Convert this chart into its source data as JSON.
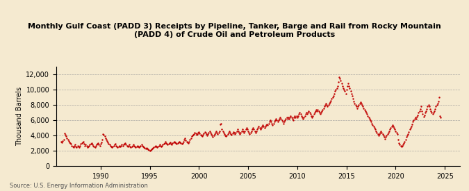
{
  "title": "Monthly Gulf Coast (PADD 3) Receipts by Pipeline, Tanker, Barge and Rail from Rocky Mountain\n(PADD 4) of Crude Oil and Petroleum Products",
  "ylabel": "Thousand Barrels",
  "source": "Source: U.S. Energy Information Administration",
  "bg_color": "#f5ead0",
  "plot_bg_color": "#f5ead0",
  "dot_color": "#c00000",
  "xlim": [
    1985.5,
    2026.5
  ],
  "ylim": [
    0,
    13000
  ],
  "yticks": [
    0,
    2000,
    4000,
    6000,
    8000,
    10000,
    12000
  ],
  "ytick_labels": [
    "0",
    "2,000",
    "4,000",
    "6,000",
    "8,000",
    "10,000",
    "12,000"
  ],
  "xticks": [
    1990,
    1995,
    2000,
    2005,
    2010,
    2015,
    2020,
    2025
  ],
  "data": [
    [
      1986.0,
      3200
    ],
    [
      1986.08,
      3100
    ],
    [
      1986.17,
      3300
    ],
    [
      1986.25,
      3500
    ],
    [
      1986.33,
      4300
    ],
    [
      1986.42,
      4100
    ],
    [
      1986.5,
      3900
    ],
    [
      1986.58,
      3700
    ],
    [
      1986.67,
      3500
    ],
    [
      1986.75,
      3300
    ],
    [
      1986.83,
      3100
    ],
    [
      1986.92,
      3000
    ],
    [
      1987.0,
      2900
    ],
    [
      1987.08,
      2700
    ],
    [
      1987.17,
      2600
    ],
    [
      1987.25,
      2500
    ],
    [
      1987.33,
      2700
    ],
    [
      1987.42,
      2800
    ],
    [
      1987.5,
      2600
    ],
    [
      1987.58,
      2500
    ],
    [
      1987.67,
      2700
    ],
    [
      1987.75,
      2600
    ],
    [
      1987.83,
      2500
    ],
    [
      1987.92,
      2700
    ],
    [
      1988.0,
      2900
    ],
    [
      1988.08,
      3000
    ],
    [
      1988.17,
      3100
    ],
    [
      1988.25,
      3200
    ],
    [
      1988.33,
      2900
    ],
    [
      1988.42,
      2700
    ],
    [
      1988.5,
      2800
    ],
    [
      1988.58,
      2700
    ],
    [
      1988.67,
      2500
    ],
    [
      1988.75,
      2600
    ],
    [
      1988.83,
      2700
    ],
    [
      1988.92,
      2800
    ],
    [
      1989.0,
      2900
    ],
    [
      1989.08,
      3000
    ],
    [
      1989.17,
      2800
    ],
    [
      1989.25,
      2700
    ],
    [
      1989.33,
      2600
    ],
    [
      1989.42,
      2500
    ],
    [
      1989.5,
      2700
    ],
    [
      1989.58,
      2800
    ],
    [
      1989.67,
      2900
    ],
    [
      1989.75,
      3000
    ],
    [
      1989.83,
      2800
    ],
    [
      1989.92,
      2700
    ],
    [
      1990.0,
      2900
    ],
    [
      1990.08,
      3100
    ],
    [
      1990.17,
      3500
    ],
    [
      1990.25,
      4200
    ],
    [
      1990.33,
      4100
    ],
    [
      1990.42,
      3900
    ],
    [
      1990.5,
      3700
    ],
    [
      1990.58,
      3500
    ],
    [
      1990.67,
      3300
    ],
    [
      1990.75,
      3100
    ],
    [
      1990.83,
      2900
    ],
    [
      1990.92,
      2800
    ],
    [
      1991.0,
      2700
    ],
    [
      1991.08,
      2600
    ],
    [
      1991.17,
      2500
    ],
    [
      1991.25,
      2600
    ],
    [
      1991.33,
      2700
    ],
    [
      1991.42,
      2800
    ],
    [
      1991.5,
      2900
    ],
    [
      1991.58,
      2700
    ],
    [
      1991.67,
      2600
    ],
    [
      1991.75,
      2500
    ],
    [
      1991.83,
      2600
    ],
    [
      1991.92,
      2700
    ],
    [
      1992.0,
      2600
    ],
    [
      1992.08,
      2700
    ],
    [
      1992.17,
      2800
    ],
    [
      1992.25,
      2700
    ],
    [
      1992.33,
      2800
    ],
    [
      1992.42,
      2900
    ],
    [
      1992.5,
      3000
    ],
    [
      1992.58,
      2800
    ],
    [
      1992.67,
      2700
    ],
    [
      1992.75,
      2600
    ],
    [
      1992.83,
      2700
    ],
    [
      1992.92,
      2800
    ],
    [
      1993.0,
      2600
    ],
    [
      1993.08,
      2500
    ],
    [
      1993.17,
      2600
    ],
    [
      1993.25,
      2700
    ],
    [
      1993.33,
      2800
    ],
    [
      1993.42,
      2700
    ],
    [
      1993.5,
      2600
    ],
    [
      1993.58,
      2500
    ],
    [
      1993.67,
      2600
    ],
    [
      1993.75,
      2700
    ],
    [
      1993.83,
      2600
    ],
    [
      1993.92,
      2500
    ],
    [
      1994.0,
      2600
    ],
    [
      1994.08,
      2700
    ],
    [
      1994.17,
      2800
    ],
    [
      1994.25,
      2700
    ],
    [
      1994.33,
      2600
    ],
    [
      1994.42,
      2500
    ],
    [
      1994.5,
      2400
    ],
    [
      1994.58,
      2300
    ],
    [
      1994.67,
      2400
    ],
    [
      1994.75,
      2300
    ],
    [
      1994.83,
      2200
    ],
    [
      1994.92,
      2100
    ],
    [
      1995.0,
      2000
    ],
    [
      1995.08,
      2100
    ],
    [
      1995.17,
      2200
    ],
    [
      1995.25,
      2300
    ],
    [
      1995.33,
      2400
    ],
    [
      1995.42,
      2500
    ],
    [
      1995.5,
      2600
    ],
    [
      1995.58,
      2700
    ],
    [
      1995.67,
      2600
    ],
    [
      1995.75,
      2500
    ],
    [
      1995.83,
      2600
    ],
    [
      1995.92,
      2700
    ],
    [
      1996.0,
      2800
    ],
    [
      1996.08,
      2700
    ],
    [
      1996.17,
      2600
    ],
    [
      1996.25,
      2700
    ],
    [
      1996.33,
      2800
    ],
    [
      1996.42,
      2900
    ],
    [
      1996.5,
      3000
    ],
    [
      1996.58,
      3200
    ],
    [
      1996.67,
      3000
    ],
    [
      1996.75,
      2900
    ],
    [
      1996.83,
      2800
    ],
    [
      1996.92,
      2900
    ],
    [
      1997.0,
      3000
    ],
    [
      1997.08,
      3100
    ],
    [
      1997.17,
      2900
    ],
    [
      1997.25,
      2800
    ],
    [
      1997.33,
      3000
    ],
    [
      1997.42,
      3100
    ],
    [
      1997.5,
      3200
    ],
    [
      1997.58,
      3100
    ],
    [
      1997.67,
      3000
    ],
    [
      1997.75,
      2900
    ],
    [
      1997.83,
      3000
    ],
    [
      1997.92,
      3100
    ],
    [
      1998.0,
      3200
    ],
    [
      1998.08,
      3100
    ],
    [
      1998.17,
      3000
    ],
    [
      1998.25,
      2900
    ],
    [
      1998.33,
      3000
    ],
    [
      1998.42,
      3200
    ],
    [
      1998.5,
      3500
    ],
    [
      1998.58,
      3700
    ],
    [
      1998.67,
      3400
    ],
    [
      1998.75,
      3200
    ],
    [
      1998.83,
      3100
    ],
    [
      1998.92,
      3000
    ],
    [
      1999.0,
      3200
    ],
    [
      1999.08,
      3500
    ],
    [
      1999.17,
      3700
    ],
    [
      1999.25,
      3900
    ],
    [
      1999.33,
      4000
    ],
    [
      1999.42,
      4100
    ],
    [
      1999.5,
      4200
    ],
    [
      1999.58,
      4400
    ],
    [
      1999.67,
      4300
    ],
    [
      1999.75,
      4100
    ],
    [
      1999.83,
      4200
    ],
    [
      1999.92,
      4400
    ],
    [
      2000.0,
      4500
    ],
    [
      2000.08,
      4300
    ],
    [
      2000.17,
      4100
    ],
    [
      2000.25,
      4000
    ],
    [
      2000.33,
      3900
    ],
    [
      2000.42,
      4100
    ],
    [
      2000.5,
      4300
    ],
    [
      2000.58,
      4500
    ],
    [
      2000.67,
      4400
    ],
    [
      2000.75,
      4200
    ],
    [
      2000.83,
      4000
    ],
    [
      2000.92,
      4200
    ],
    [
      2001.0,
      4400
    ],
    [
      2001.08,
      4600
    ],
    [
      2001.17,
      4400
    ],
    [
      2001.25,
      4200
    ],
    [
      2001.33,
      4000
    ],
    [
      2001.42,
      3800
    ],
    [
      2001.5,
      4000
    ],
    [
      2001.58,
      4200
    ],
    [
      2001.67,
      4400
    ],
    [
      2001.75,
      4600
    ],
    [
      2001.83,
      4400
    ],
    [
      2001.92,
      4200
    ],
    [
      2002.0,
      4400
    ],
    [
      2002.08,
      4600
    ],
    [
      2002.17,
      5500
    ],
    [
      2002.25,
      5600
    ],
    [
      2002.33,
      4800
    ],
    [
      2002.42,
      4600
    ],
    [
      2002.5,
      4400
    ],
    [
      2002.58,
      4200
    ],
    [
      2002.67,
      4000
    ],
    [
      2002.75,
      3900
    ],
    [
      2002.83,
      4000
    ],
    [
      2002.92,
      4200
    ],
    [
      2003.0,
      4400
    ],
    [
      2003.08,
      4600
    ],
    [
      2003.17,
      4400
    ],
    [
      2003.25,
      4200
    ],
    [
      2003.33,
      4100
    ],
    [
      2003.42,
      4300
    ],
    [
      2003.5,
      4500
    ],
    [
      2003.58,
      4400
    ],
    [
      2003.67,
      4200
    ],
    [
      2003.75,
      4400
    ],
    [
      2003.83,
      4600
    ],
    [
      2003.92,
      4800
    ],
    [
      2004.0,
      4600
    ],
    [
      2004.08,
      4400
    ],
    [
      2004.17,
      4200
    ],
    [
      2004.25,
      4400
    ],
    [
      2004.33,
      4600
    ],
    [
      2004.42,
      4800
    ],
    [
      2004.5,
      4600
    ],
    [
      2004.58,
      4400
    ],
    [
      2004.67,
      4600
    ],
    [
      2004.75,
      4800
    ],
    [
      2004.83,
      5000
    ],
    [
      2004.92,
      4800
    ],
    [
      2005.0,
      4600
    ],
    [
      2005.08,
      4400
    ],
    [
      2005.17,
      4200
    ],
    [
      2005.25,
      4400
    ],
    [
      2005.33,
      4600
    ],
    [
      2005.42,
      4800
    ],
    [
      2005.5,
      5000
    ],
    [
      2005.58,
      4800
    ],
    [
      2005.67,
      4600
    ],
    [
      2005.75,
      4400
    ],
    [
      2005.83,
      4600
    ],
    [
      2005.92,
      4800
    ],
    [
      2006.0,
      5000
    ],
    [
      2006.08,
      5200
    ],
    [
      2006.17,
      5000
    ],
    [
      2006.25,
      4800
    ],
    [
      2006.33,
      5000
    ],
    [
      2006.42,
      5200
    ],
    [
      2006.5,
      5400
    ],
    [
      2006.58,
      5200
    ],
    [
      2006.67,
      5000
    ],
    [
      2006.75,
      5200
    ],
    [
      2006.83,
      5400
    ],
    [
      2006.92,
      5500
    ],
    [
      2007.0,
      5400
    ],
    [
      2007.08,
      5600
    ],
    [
      2007.17,
      5800
    ],
    [
      2007.25,
      6000
    ],
    [
      2007.33,
      5800
    ],
    [
      2007.42,
      5600
    ],
    [
      2007.5,
      5400
    ],
    [
      2007.58,
      5600
    ],
    [
      2007.67,
      5800
    ],
    [
      2007.75,
      6000
    ],
    [
      2007.83,
      6200
    ],
    [
      2007.92,
      6000
    ],
    [
      2008.0,
      5800
    ],
    [
      2008.08,
      6000
    ],
    [
      2008.17,
      6200
    ],
    [
      2008.25,
      6400
    ],
    [
      2008.33,
      6200
    ],
    [
      2008.42,
      6000
    ],
    [
      2008.5,
      5800
    ],
    [
      2008.58,
      5600
    ],
    [
      2008.67,
      5800
    ],
    [
      2008.75,
      6000
    ],
    [
      2008.83,
      6200
    ],
    [
      2008.92,
      6400
    ],
    [
      2009.0,
      6200
    ],
    [
      2009.08,
      6400
    ],
    [
      2009.17,
      6200
    ],
    [
      2009.25,
      6400
    ],
    [
      2009.33,
      6600
    ],
    [
      2009.42,
      6400
    ],
    [
      2009.5,
      6200
    ],
    [
      2009.58,
      6000
    ],
    [
      2009.67,
      6400
    ],
    [
      2009.75,
      6600
    ],
    [
      2009.83,
      6400
    ],
    [
      2009.92,
      6600
    ],
    [
      2010.0,
      6400
    ],
    [
      2010.08,
      6600
    ],
    [
      2010.17,
      6800
    ],
    [
      2010.25,
      7000
    ],
    [
      2010.33,
      6800
    ],
    [
      2010.42,
      6600
    ],
    [
      2010.5,
      6400
    ],
    [
      2010.58,
      6200
    ],
    [
      2010.67,
      6400
    ],
    [
      2010.75,
      6600
    ],
    [
      2010.83,
      6800
    ],
    [
      2010.92,
      7000
    ],
    [
      2011.0,
      6800
    ],
    [
      2011.08,
      7000
    ],
    [
      2011.17,
      7200
    ],
    [
      2011.25,
      7000
    ],
    [
      2011.33,
      6800
    ],
    [
      2011.42,
      6600
    ],
    [
      2011.5,
      6400
    ],
    [
      2011.58,
      6600
    ],
    [
      2011.67,
      6800
    ],
    [
      2011.75,
      7000
    ],
    [
      2011.83,
      7200
    ],
    [
      2011.92,
      7400
    ],
    [
      2012.0,
      7200
    ],
    [
      2012.08,
      7400
    ],
    [
      2012.17,
      7200
    ],
    [
      2012.25,
      7000
    ],
    [
      2012.33,
      6800
    ],
    [
      2012.42,
      7000
    ],
    [
      2012.5,
      7200
    ],
    [
      2012.58,
      7400
    ],
    [
      2012.67,
      7600
    ],
    [
      2012.75,
      7800
    ],
    [
      2012.83,
      8000
    ],
    [
      2012.92,
      8200
    ],
    [
      2013.0,
      8000
    ],
    [
      2013.08,
      7800
    ],
    [
      2013.17,
      8000
    ],
    [
      2013.25,
      8200
    ],
    [
      2013.33,
      8400
    ],
    [
      2013.42,
      8600
    ],
    [
      2013.5,
      8800
    ],
    [
      2013.58,
      9000
    ],
    [
      2013.67,
      9200
    ],
    [
      2013.75,
      9500
    ],
    [
      2013.83,
      9800
    ],
    [
      2013.92,
      10000
    ],
    [
      2014.0,
      10200
    ],
    [
      2014.08,
      10500
    ],
    [
      2014.17,
      11000
    ],
    [
      2014.25,
      11700
    ],
    [
      2014.33,
      11500
    ],
    [
      2014.42,
      11200
    ],
    [
      2014.5,
      10800
    ],
    [
      2014.58,
      10500
    ],
    [
      2014.67,
      10200
    ],
    [
      2014.75,
      10000
    ],
    [
      2014.83,
      9800
    ],
    [
      2014.92,
      9500
    ],
    [
      2015.0,
      10000
    ],
    [
      2015.08,
      10500
    ],
    [
      2015.17,
      10800
    ],
    [
      2015.25,
      10500
    ],
    [
      2015.33,
      10200
    ],
    [
      2015.42,
      9800
    ],
    [
      2015.5,
      9500
    ],
    [
      2015.58,
      9200
    ],
    [
      2015.67,
      8800
    ],
    [
      2015.75,
      8500
    ],
    [
      2015.83,
      8200
    ],
    [
      2015.92,
      8000
    ],
    [
      2016.0,
      7800
    ],
    [
      2016.08,
      7600
    ],
    [
      2016.17,
      7800
    ],
    [
      2016.25,
      8000
    ],
    [
      2016.33,
      8200
    ],
    [
      2016.42,
      8400
    ],
    [
      2016.5,
      8200
    ],
    [
      2016.58,
      8000
    ],
    [
      2016.67,
      7800
    ],
    [
      2016.75,
      7600
    ],
    [
      2016.83,
      7400
    ],
    [
      2016.92,
      7200
    ],
    [
      2017.0,
      7000
    ],
    [
      2017.08,
      6800
    ],
    [
      2017.17,
      6600
    ],
    [
      2017.25,
      6400
    ],
    [
      2017.33,
      6200
    ],
    [
      2017.42,
      6000
    ],
    [
      2017.5,
      5800
    ],
    [
      2017.58,
      5600
    ],
    [
      2017.67,
      5400
    ],
    [
      2017.75,
      5200
    ],
    [
      2017.83,
      5000
    ],
    [
      2017.92,
      4800
    ],
    [
      2018.0,
      4600
    ],
    [
      2018.08,
      4400
    ],
    [
      2018.17,
      4200
    ],
    [
      2018.25,
      4000
    ],
    [
      2018.33,
      4200
    ],
    [
      2018.42,
      4400
    ],
    [
      2018.5,
      4600
    ],
    [
      2018.58,
      4400
    ],
    [
      2018.67,
      4200
    ],
    [
      2018.75,
      4000
    ],
    [
      2018.83,
      3800
    ],
    [
      2018.92,
      3600
    ],
    [
      2019.0,
      3800
    ],
    [
      2019.08,
      4000
    ],
    [
      2019.17,
      4200
    ],
    [
      2019.25,
      4400
    ],
    [
      2019.33,
      4600
    ],
    [
      2019.42,
      4800
    ],
    [
      2019.5,
      5000
    ],
    [
      2019.58,
      5200
    ],
    [
      2019.67,
      5400
    ],
    [
      2019.75,
      5200
    ],
    [
      2019.83,
      5000
    ],
    [
      2019.92,
      4800
    ],
    [
      2020.0,
      4600
    ],
    [
      2020.08,
      4400
    ],
    [
      2020.17,
      4200
    ],
    [
      2020.25,
      3500
    ],
    [
      2020.33,
      3000
    ],
    [
      2020.42,
      2800
    ],
    [
      2020.5,
      2700
    ],
    [
      2020.58,
      2600
    ],
    [
      2020.67,
      2700
    ],
    [
      2020.75,
      2800
    ],
    [
      2020.83,
      3000
    ],
    [
      2020.92,
      3200
    ],
    [
      2021.0,
      3500
    ],
    [
      2021.08,
      3800
    ],
    [
      2021.17,
      4000
    ],
    [
      2021.25,
      4200
    ],
    [
      2021.33,
      4500
    ],
    [
      2021.42,
      4800
    ],
    [
      2021.5,
      5000
    ],
    [
      2021.58,
      5200
    ],
    [
      2021.67,
      5500
    ],
    [
      2021.75,
      5800
    ],
    [
      2021.83,
      6000
    ],
    [
      2021.92,
      6200
    ],
    [
      2022.0,
      6400
    ],
    [
      2022.08,
      6200
    ],
    [
      2022.17,
      6500
    ],
    [
      2022.25,
      6700
    ],
    [
      2022.33,
      7000
    ],
    [
      2022.42,
      7200
    ],
    [
      2022.5,
      7500
    ],
    [
      2022.58,
      7800
    ],
    [
      2022.67,
      7200
    ],
    [
      2022.75,
      6800
    ],
    [
      2022.83,
      6500
    ],
    [
      2022.92,
      6700
    ],
    [
      2023.0,
      7000
    ],
    [
      2023.08,
      7200
    ],
    [
      2023.17,
      7500
    ],
    [
      2023.25,
      7800
    ],
    [
      2023.33,
      8000
    ],
    [
      2023.42,
      7800
    ],
    [
      2023.5,
      7500
    ],
    [
      2023.58,
      7200
    ],
    [
      2023.67,
      7000
    ],
    [
      2023.75,
      6800
    ],
    [
      2023.83,
      7000
    ],
    [
      2023.92,
      7200
    ],
    [
      2024.0,
      7500
    ],
    [
      2024.08,
      7800
    ],
    [
      2024.17,
      8000
    ],
    [
      2024.25,
      8200
    ],
    [
      2024.33,
      8500
    ],
    [
      2024.42,
      9000
    ],
    [
      2024.5,
      6600
    ],
    [
      2024.58,
      6400
    ]
  ]
}
